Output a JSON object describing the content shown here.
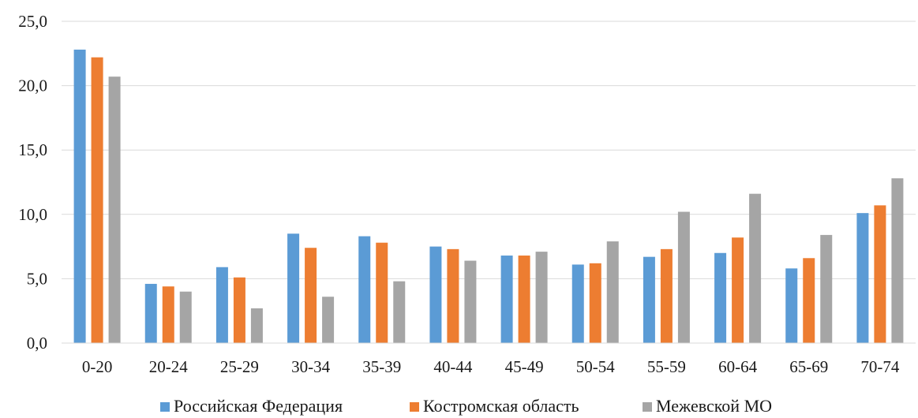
{
  "chart_data": {
    "type": "bar",
    "categories": [
      "0-20",
      "20-24",
      "25-29",
      "30-34",
      "35-39",
      "40-44",
      "45-49",
      "50-54",
      "55-59",
      "60-64",
      "65-69",
      "70-74"
    ],
    "series": [
      {
        "name": "Российская Федерация",
        "color": "#5b9bd5",
        "values": [
          22.8,
          4.6,
          5.9,
          8.5,
          8.3,
          7.5,
          6.8,
          6.1,
          6.7,
          7.0,
          5.8,
          10.1
        ]
      },
      {
        "name": "Костромская область",
        "color": "#ed7d31",
        "values": [
          22.2,
          4.4,
          5.1,
          7.4,
          7.8,
          7.3,
          6.8,
          6.2,
          7.3,
          8.2,
          6.6,
          10.7
        ]
      },
      {
        "name": "Межевской МО",
        "color": "#a5a5a5",
        "values": [
          20.7,
          4.0,
          2.7,
          3.6,
          4.8,
          6.4,
          7.1,
          7.9,
          10.2,
          11.6,
          8.4,
          12.8
        ]
      }
    ],
    "y_ticks": [
      "0,0",
      "5,0",
      "10,0",
      "15,0",
      "20,0",
      "25,0"
    ],
    "ylim": [
      0,
      25
    ],
    "grid": "horizontal",
    "legend_position": "bottom"
  }
}
